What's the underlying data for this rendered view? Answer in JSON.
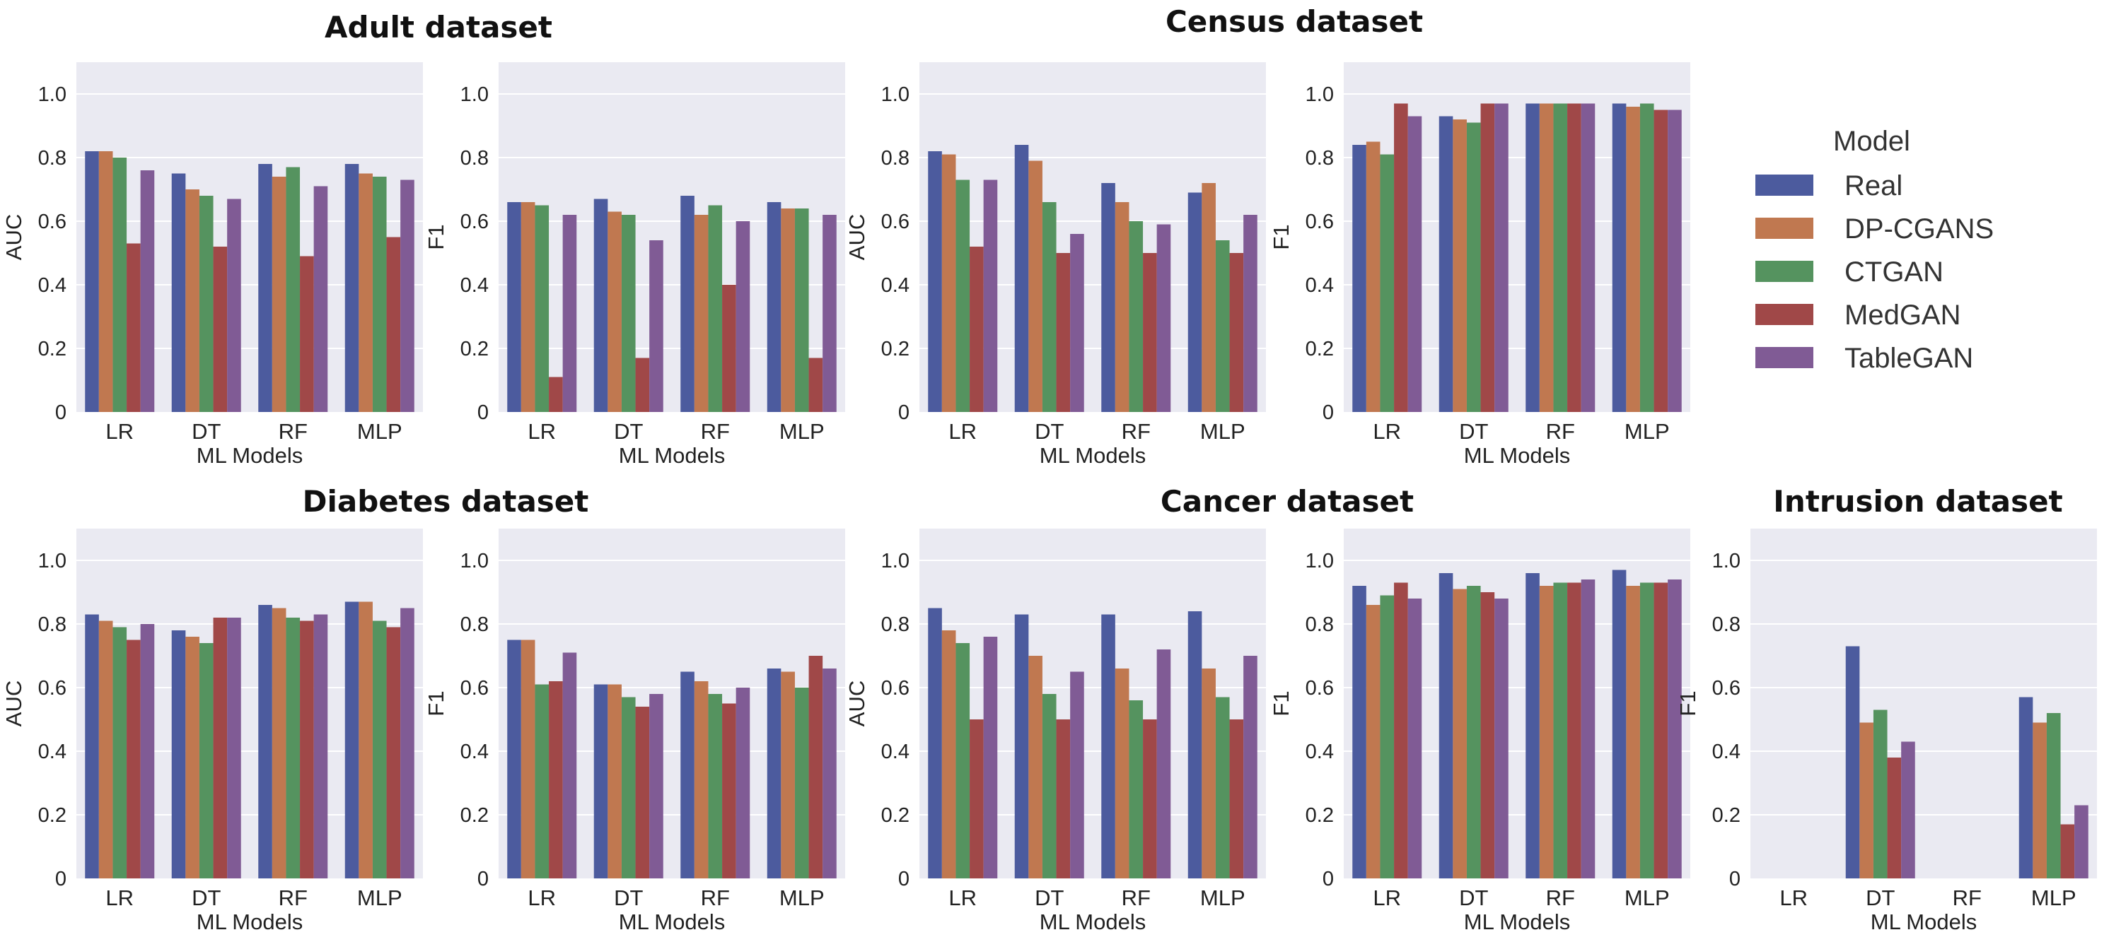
{
  "legend": {
    "title": "Model",
    "entries": [
      {
        "name": "Real",
        "color": "#4c5b9e"
      },
      {
        "name": "DP-CGANS",
        "color": "#c07850"
      },
      {
        "name": "CTGAN",
        "color": "#55935f"
      },
      {
        "name": "MedGAN",
        "color": "#a04848"
      },
      {
        "name": "TableGAN",
        "color": "#805b95"
      }
    ]
  },
  "titles": [
    {
      "text": "Adult  dataset",
      "group": "adult"
    },
    {
      "text": "Census  dataset",
      "group": "census"
    },
    {
      "text": "Diabetes  dataset",
      "group": "diabetes"
    },
    {
      "text": "Cancer  dataset",
      "group": "cancer"
    },
    {
      "text": "Intrusion  dataset",
      "group": "intrusion"
    }
  ],
  "chart_data": [
    {
      "type": "bar",
      "dataset": "Adult",
      "ylabel": "AUC",
      "xlabel": "ML Models",
      "ylim": [
        0,
        1.1
      ],
      "yticks": [
        "0",
        "0.2",
        "0.4",
        "0.6",
        "0.8",
        "1.0"
      ],
      "categories": [
        "LR",
        "DT",
        "RF",
        "MLP"
      ],
      "series": [
        {
          "name": "Real",
          "values": [
            0.82,
            0.75,
            0.78,
            0.78
          ]
        },
        {
          "name": "DP-CGANS",
          "values": [
            0.82,
            0.7,
            0.74,
            0.75
          ]
        },
        {
          "name": "CTGAN",
          "values": [
            0.8,
            0.68,
            0.77,
            0.74
          ]
        },
        {
          "name": "MedGAN",
          "values": [
            0.53,
            0.52,
            0.49,
            0.55
          ]
        },
        {
          "name": "TableGAN",
          "values": [
            0.76,
            0.67,
            0.71,
            0.73
          ]
        }
      ]
    },
    {
      "type": "bar",
      "dataset": "Adult",
      "ylabel": "F1",
      "xlabel": "ML Models",
      "ylim": [
        0,
        1.1
      ],
      "yticks": [
        "0",
        "0.2",
        "0.4",
        "0.6",
        "0.8",
        "1.0"
      ],
      "categories": [
        "LR",
        "DT",
        "RF",
        "MLP"
      ],
      "series": [
        {
          "name": "Real",
          "values": [
            0.66,
            0.67,
            0.68,
            0.66
          ]
        },
        {
          "name": "DP-CGANS",
          "values": [
            0.66,
            0.63,
            0.62,
            0.64
          ]
        },
        {
          "name": "CTGAN",
          "values": [
            0.65,
            0.62,
            0.65,
            0.64
          ]
        },
        {
          "name": "MedGAN",
          "values": [
            0.11,
            0.17,
            0.4,
            0.17
          ]
        },
        {
          "name": "TableGAN",
          "values": [
            0.62,
            0.54,
            0.6,
            0.62
          ]
        }
      ]
    },
    {
      "type": "bar",
      "dataset": "Census",
      "ylabel": "AUC",
      "xlabel": "ML Models",
      "ylim": [
        0,
        1.1
      ],
      "yticks": [
        "0",
        "0.2",
        "0.4",
        "0.6",
        "0.8",
        "1.0"
      ],
      "categories": [
        "LR",
        "DT",
        "RF",
        "MLP"
      ],
      "series": [
        {
          "name": "Real",
          "values": [
            0.82,
            0.84,
            0.72,
            0.69
          ]
        },
        {
          "name": "DP-CGANS",
          "values": [
            0.81,
            0.79,
            0.66,
            0.72
          ]
        },
        {
          "name": "CTGAN",
          "values": [
            0.73,
            0.66,
            0.6,
            0.54
          ]
        },
        {
          "name": "MedGAN",
          "values": [
            0.52,
            0.5,
            0.5,
            0.5
          ]
        },
        {
          "name": "TableGAN",
          "values": [
            0.73,
            0.56,
            0.59,
            0.62
          ]
        }
      ]
    },
    {
      "type": "bar",
      "dataset": "Census",
      "ylabel": "F1",
      "xlabel": "ML Models",
      "ylim": [
        0,
        1.1
      ],
      "yticks": [
        "0",
        "0.2",
        "0.4",
        "0.6",
        "0.8",
        "1.0"
      ],
      "categories": [
        "LR",
        "DT",
        "RF",
        "MLP"
      ],
      "series": [
        {
          "name": "Real",
          "values": [
            0.84,
            0.93,
            0.97,
            0.97
          ]
        },
        {
          "name": "DP-CGANS",
          "values": [
            0.85,
            0.92,
            0.97,
            0.96
          ]
        },
        {
          "name": "CTGAN",
          "values": [
            0.81,
            0.91,
            0.97,
            0.97
          ]
        },
        {
          "name": "MedGAN",
          "values": [
            0.97,
            0.97,
            0.97,
            0.95
          ]
        },
        {
          "name": "TableGAN",
          "values": [
            0.93,
            0.97,
            0.97,
            0.95
          ]
        }
      ]
    },
    {
      "type": "bar",
      "dataset": "Diabetes",
      "ylabel": "AUC",
      "xlabel": "ML Models",
      "ylim": [
        0,
        1.1
      ],
      "yticks": [
        "0",
        "0.2",
        "0.4",
        "0.6",
        "0.8",
        "1.0"
      ],
      "categories": [
        "LR",
        "DT",
        "RF",
        "MLP"
      ],
      "series": [
        {
          "name": "Real",
          "values": [
            0.83,
            0.78,
            0.86,
            0.87
          ]
        },
        {
          "name": "DP-CGANS",
          "values": [
            0.81,
            0.76,
            0.85,
            0.87
          ]
        },
        {
          "name": "CTGAN",
          "values": [
            0.79,
            0.74,
            0.82,
            0.81
          ]
        },
        {
          "name": "MedGAN",
          "values": [
            0.75,
            0.82,
            0.81,
            0.79
          ]
        },
        {
          "name": "TableGAN",
          "values": [
            0.8,
            0.82,
            0.83,
            0.85
          ]
        }
      ]
    },
    {
      "type": "bar",
      "dataset": "Diabetes",
      "ylabel": "F1",
      "xlabel": "ML Models",
      "ylim": [
        0,
        1.1
      ],
      "yticks": [
        "0",
        "0.2",
        "0.4",
        "0.6",
        "0.8",
        "1.0"
      ],
      "categories": [
        "LR",
        "DT",
        "RF",
        "MLP"
      ],
      "series": [
        {
          "name": "Real",
          "values": [
            0.75,
            0.61,
            0.65,
            0.66
          ]
        },
        {
          "name": "DP-CGANS",
          "values": [
            0.75,
            0.61,
            0.62,
            0.65
          ]
        },
        {
          "name": "CTGAN",
          "values": [
            0.61,
            0.57,
            0.58,
            0.6
          ]
        },
        {
          "name": "MedGAN",
          "values": [
            0.62,
            0.54,
            0.55,
            0.7
          ]
        },
        {
          "name": "TableGAN",
          "values": [
            0.71,
            0.58,
            0.6,
            0.66
          ]
        }
      ]
    },
    {
      "type": "bar",
      "dataset": "Cancer",
      "ylabel": "AUC",
      "xlabel": "ML Models",
      "ylim": [
        0,
        1.1
      ],
      "yticks": [
        "0",
        "0.2",
        "0.4",
        "0.6",
        "0.8",
        "1.0"
      ],
      "categories": [
        "LR",
        "DT",
        "RF",
        "MLP"
      ],
      "series": [
        {
          "name": "Real",
          "values": [
            0.85,
            0.83,
            0.83,
            0.84
          ]
        },
        {
          "name": "DP-CGANS",
          "values": [
            0.78,
            0.7,
            0.66,
            0.66
          ]
        },
        {
          "name": "CTGAN",
          "values": [
            0.74,
            0.58,
            0.56,
            0.57
          ]
        },
        {
          "name": "MedGAN",
          "values": [
            0.5,
            0.5,
            0.5,
            0.5
          ]
        },
        {
          "name": "TableGAN",
          "values": [
            0.76,
            0.65,
            0.72,
            0.7
          ]
        }
      ]
    },
    {
      "type": "bar",
      "dataset": "Cancer",
      "ylabel": "F1",
      "xlabel": "ML Models",
      "ylim": [
        0,
        1.1
      ],
      "yticks": [
        "0",
        "0.2",
        "0.4",
        "0.6",
        "0.8",
        "1.0"
      ],
      "categories": [
        "LR",
        "DT",
        "RF",
        "MLP"
      ],
      "series": [
        {
          "name": "Real",
          "values": [
            0.92,
            0.96,
            0.96,
            0.97
          ]
        },
        {
          "name": "DP-CGANS",
          "values": [
            0.86,
            0.91,
            0.92,
            0.92
          ]
        },
        {
          "name": "CTGAN",
          "values": [
            0.89,
            0.92,
            0.93,
            0.93
          ]
        },
        {
          "name": "MedGAN",
          "values": [
            0.93,
            0.9,
            0.93,
            0.93
          ]
        },
        {
          "name": "TableGAN",
          "values": [
            0.88,
            0.88,
            0.94,
            0.94
          ]
        }
      ]
    },
    {
      "type": "bar",
      "dataset": "Intrusion",
      "ylabel": "F1",
      "xlabel": "ML Models",
      "ylim": [
        0,
        1.1
      ],
      "yticks": [
        "0",
        "0.2",
        "0.4",
        "0.6",
        "0.8",
        "1.0"
      ],
      "categories": [
        "LR",
        "DT",
        "RF",
        "MLP"
      ],
      "series": [
        {
          "name": "Real",
          "values": [
            0,
            0.73,
            0,
            0.57
          ]
        },
        {
          "name": "DP-CGANS",
          "values": [
            0,
            0.49,
            0,
            0.49
          ]
        },
        {
          "name": "CTGAN",
          "values": [
            0,
            0.53,
            0,
            0.52
          ]
        },
        {
          "name": "MedGAN",
          "values": [
            0,
            0.38,
            0,
            0.17
          ]
        },
        {
          "name": "TableGAN",
          "values": [
            0,
            0.43,
            0,
            0.23
          ]
        }
      ]
    }
  ]
}
